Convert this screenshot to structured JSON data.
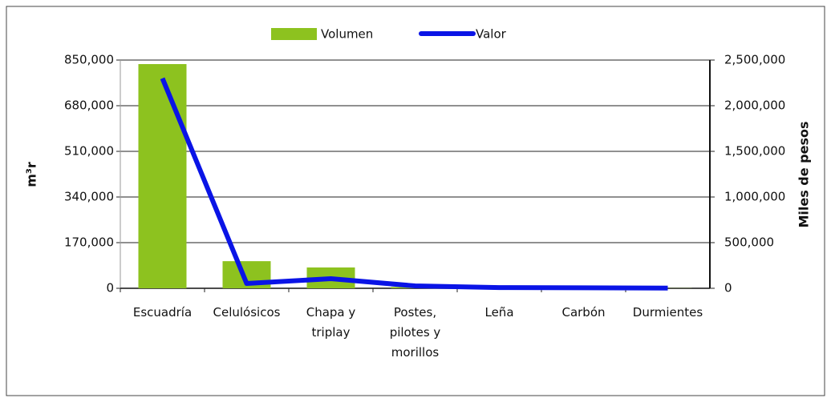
{
  "chart_data": {
    "type": "bar-line",
    "categories": [
      "Escuadría",
      "Celulósicos",
      "Chapa y triplay",
      "Postes, pilotes y morillos",
      "Leña",
      "Carbón",
      "Durmientes"
    ],
    "series": [
      {
        "name": "Volumen",
        "type": "bar",
        "color": "#8dc21f",
        "values": [
          835000,
          101000,
          77500,
          5000,
          1000,
          1000,
          500
        ]
      },
      {
        "name": "Valor",
        "type": "line",
        "axis": "y2",
        "color": "#0a14e6",
        "values": [
          2300000,
          53000,
          105000,
          26000,
          8000,
          5000,
          2000
        ]
      }
    ],
    "ylabel": "m³r",
    "y2label": "Miles de pesos",
    "ylim": [
      0,
      850000
    ],
    "yticks": [
      0,
      {
        "value": 170000,
        "label": "170,000"
      },
      {
        "value": 340000,
        "label": "340,000"
      },
      {
        "value": 510000,
        "label": "510,000"
      },
      {
        "value": 680000,
        "label": "680,000"
      },
      {
        "value": 850000,
        "label": "850,000"
      }
    ],
    "y2lim": [
      0,
      2500000
    ],
    "y2ticks": [
      0,
      {
        "value": 500000,
        "label": "500,000"
      },
      {
        "value": 1000000,
        "label": "1,000,000"
      },
      {
        "value": 1500000,
        "label": "1,500,000"
      },
      {
        "value": 2000000,
        "label": "2,000,000"
      },
      {
        "value": 2500000,
        "label": "2,500,000"
      }
    ],
    "grid": true,
    "legend": "top"
  }
}
